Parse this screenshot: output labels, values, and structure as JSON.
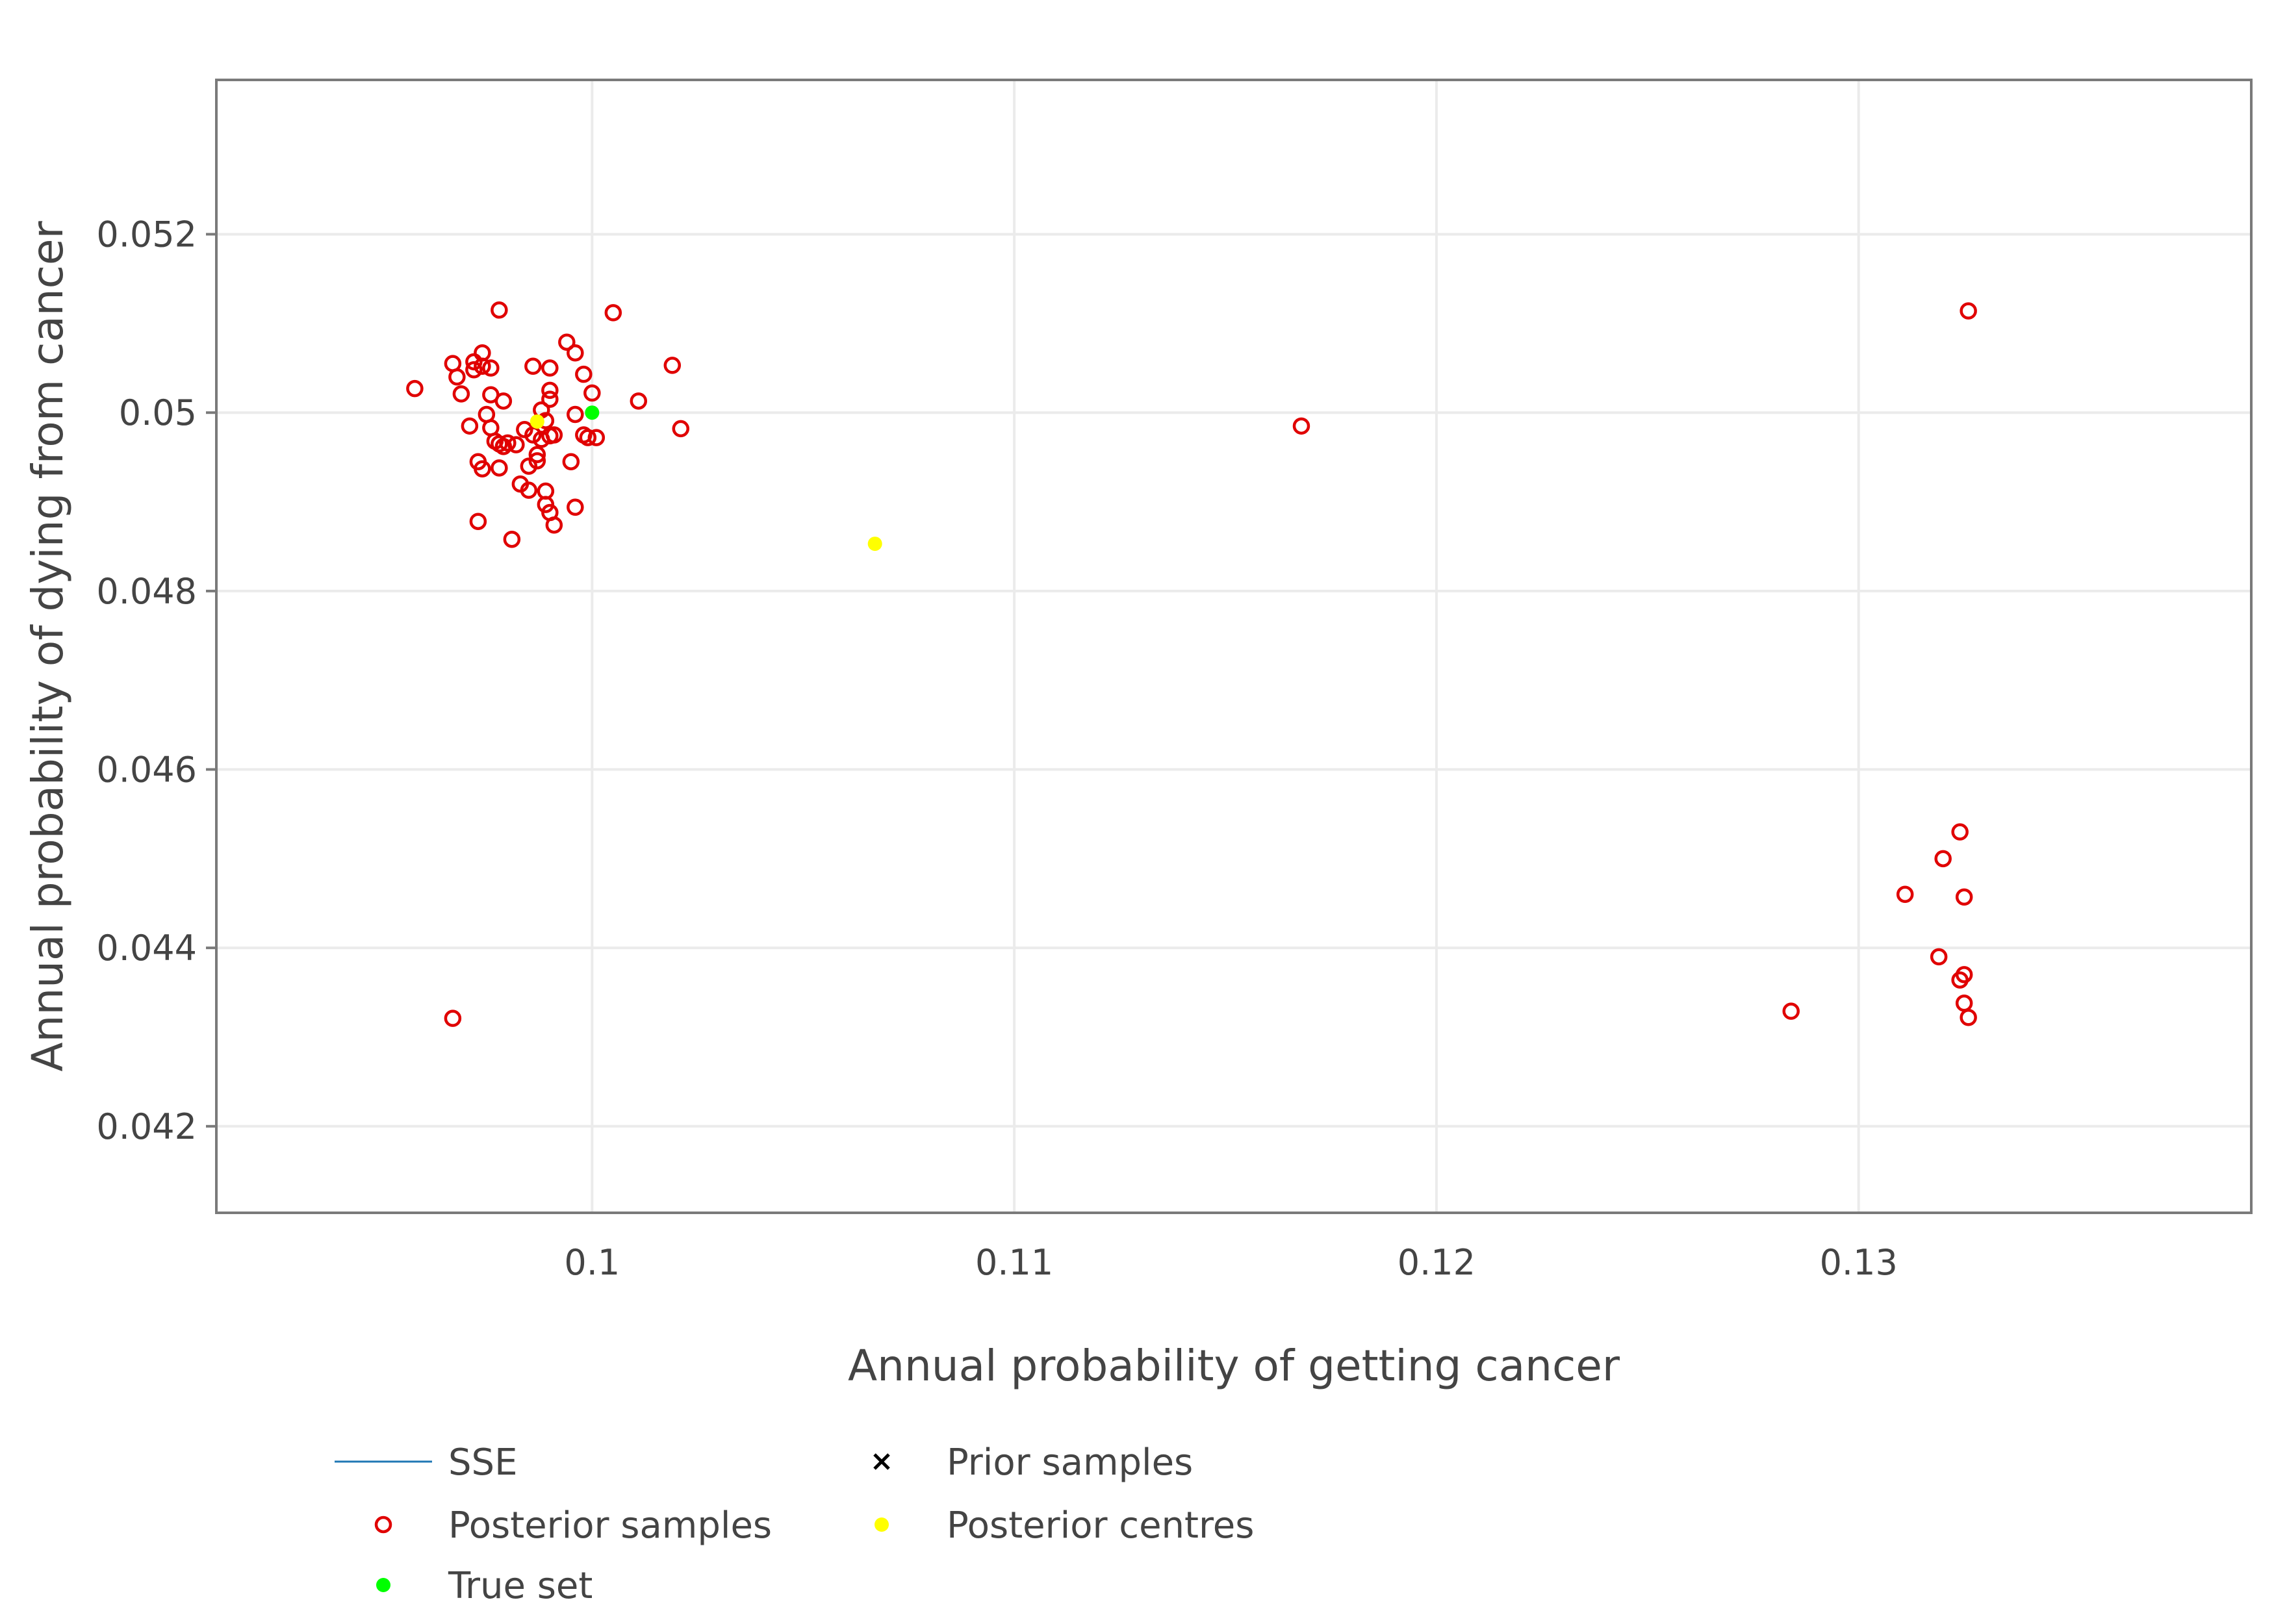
{
  "chart_data": {
    "type": "scatter",
    "title": "",
    "xlabel": "Annual probability of getting cancer",
    "ylabel": "Annual probability of dying from cancer",
    "xlim": [
      0.0911,
      0.1393
    ],
    "ylim": [
      0.04103,
      0.05373
    ],
    "xticks": [
      {
        "value": 0.1,
        "label": "0.1"
      },
      {
        "value": 0.11,
        "label": "0.11"
      },
      {
        "value": 0.12,
        "label": "0.12"
      },
      {
        "value": 0.13,
        "label": "0.13"
      }
    ],
    "yticks": [
      {
        "value": 0.042,
        "label": "0.042"
      },
      {
        "value": 0.044,
        "label": "0.044"
      },
      {
        "value": 0.046,
        "label": "0.046"
      },
      {
        "value": 0.048,
        "label": "0.048"
      },
      {
        "value": 0.05,
        "label": "0.05"
      },
      {
        "value": 0.052,
        "label": "0.052"
      }
    ],
    "grid": true,
    "legend_position": "bottom",
    "series": [
      {
        "name": "SSE",
        "marker": "line",
        "color": "#1f77b4",
        "points": []
      },
      {
        "name": "Prior samples",
        "marker": "x",
        "color": "#000000",
        "points": []
      },
      {
        "name": "Posterior samples",
        "marker": "circle-open",
        "color": "#e00000",
        "points": [
          [
            0.0958,
            0.05027
          ],
          [
            0.0968,
            0.0504
          ],
          [
            0.0967,
            0.05055
          ],
          [
            0.0969,
            0.05021
          ],
          [
            0.0972,
            0.05048
          ],
          [
            0.0972,
            0.05057
          ],
          [
            0.0974,
            0.05067
          ],
          [
            0.0974,
            0.05052
          ],
          [
            0.0976,
            0.0505
          ],
          [
            0.0978,
            0.05115
          ],
          [
            0.0976,
            0.0502
          ],
          [
            0.0979,
            0.05013
          ],
          [
            0.0971,
            0.04985
          ],
          [
            0.0975,
            0.04998
          ],
          [
            0.0976,
            0.04983
          ],
          [
            0.0977,
            0.04968
          ],
          [
            0.0978,
            0.04965
          ],
          [
            0.098,
            0.04966
          ],
          [
            0.0979,
            0.04962
          ],
          [
            0.0982,
            0.04964
          ],
          [
            0.0973,
            0.04945
          ],
          [
            0.0974,
            0.04937
          ],
          [
            0.0978,
            0.04938
          ],
          [
            0.0973,
            0.04878
          ],
          [
            0.0981,
            0.04858
          ],
          [
            0.0983,
            0.0492
          ],
          [
            0.0985,
            0.04913
          ],
          [
            0.0985,
            0.0494
          ],
          [
            0.0987,
            0.04946
          ],
          [
            0.0987,
            0.04953
          ],
          [
            0.0984,
            0.04981
          ],
          [
            0.0986,
            0.04975
          ],
          [
            0.0988,
            0.0497
          ],
          [
            0.0988,
            0.05003
          ],
          [
            0.0989,
            0.04991
          ],
          [
            0.099,
            0.04974
          ],
          [
            0.0991,
            0.04975
          ],
          [
            0.0989,
            0.04912
          ],
          [
            0.0989,
            0.04897
          ],
          [
            0.099,
            0.04888
          ],
          [
            0.0991,
            0.04874
          ],
          [
            0.0986,
            0.05052
          ],
          [
            0.099,
            0.0505
          ],
          [
            0.099,
            0.05025
          ],
          [
            0.099,
            0.05015
          ],
          [
            0.0994,
            0.05079
          ],
          [
            0.0996,
            0.05067
          ],
          [
            0.0998,
            0.05043
          ],
          [
            0.1,
            0.05022
          ],
          [
            0.0996,
            0.04998
          ],
          [
            0.0998,
            0.04975
          ],
          [
            0.0999,
            0.04972
          ],
          [
            0.1001,
            0.04972
          ],
          [
            0.0995,
            0.04945
          ],
          [
            0.0996,
            0.04894
          ],
          [
            0.1005,
            0.05112
          ],
          [
            0.1011,
            0.05013
          ],
          [
            0.1019,
            0.05053
          ],
          [
            0.1021,
            0.04982
          ],
          [
            0.0967,
            0.04321
          ],
          [
            0.1168,
            0.04985
          ],
          [
            0.1326,
            0.05114
          ],
          [
            0.1284,
            0.04329
          ],
          [
            0.1311,
            0.0446
          ],
          [
            0.132,
            0.045
          ],
          [
            0.1324,
            0.0453
          ],
          [
            0.1325,
            0.04457
          ],
          [
            0.1319,
            0.0439
          ],
          [
            0.1324,
            0.04364
          ],
          [
            0.1325,
            0.0437
          ],
          [
            0.1325,
            0.04338
          ],
          [
            0.1326,
            0.04322
          ]
        ]
      },
      {
        "name": "Posterior centres",
        "marker": "circle",
        "color": "#ffff00",
        "points": [
          [
            0.0987,
            0.0499
          ],
          [
            0.1067,
            0.04853
          ]
        ]
      },
      {
        "name": "True set",
        "marker": "circle",
        "color": "#00ff00",
        "points": [
          [
            0.1,
            0.05
          ]
        ]
      }
    ]
  },
  "legend": {
    "items": [
      {
        "name": "SSE",
        "marker": "line",
        "color": "#1f77b4"
      },
      {
        "name": "Prior samples",
        "marker": "x",
        "color": "#000000"
      },
      {
        "name": "Posterior samples",
        "marker": "circle-open",
        "color": "#e00000"
      },
      {
        "name": "Posterior centres",
        "marker": "circle",
        "color": "#ffff00"
      },
      {
        "name": "True set",
        "marker": "circle",
        "color": "#00ff00"
      }
    ]
  }
}
